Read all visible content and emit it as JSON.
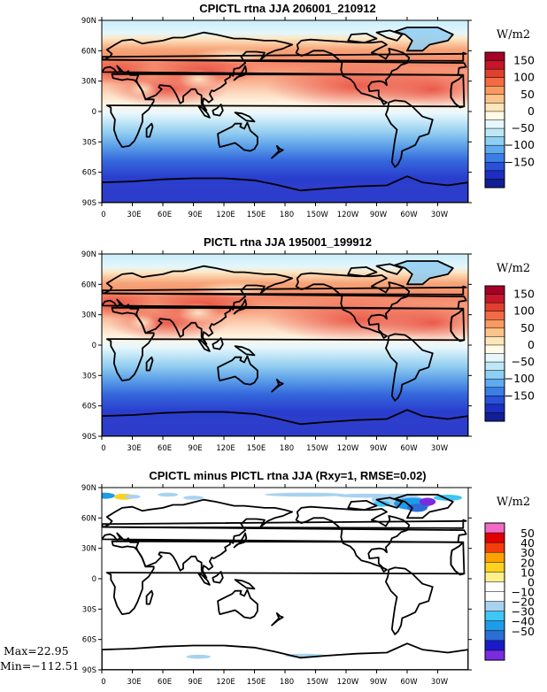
{
  "chart_data": [
    {
      "type": "heatmap",
      "title": "CPICTL rtna JJA 206001_210912",
      "units": "W/m2",
      "lat_labels": [
        "90N",
        "60N",
        "30N",
        "0",
        "30S",
        "60S",
        "90S"
      ],
      "lon_labels": [
        "0",
        "30E",
        "60E",
        "90E",
        "120E",
        "150E",
        "180",
        "150W",
        "120W",
        "90W",
        "60W",
        "30W"
      ],
      "colorbar": {
        "labels": [
          "150",
          "100",
          "50",
          "0",
          "−50",
          "−100",
          "−150"
        ],
        "colors": [
          "#a50026",
          "#c5162a",
          "#e0402f",
          "#f26b43",
          "#f99a60",
          "#fdc48a",
          "#fee6b8",
          "#fffbe6",
          "#e6f7fd",
          "#bfe8f7",
          "#8dd0f3",
          "#5fabef",
          "#3a7ee6",
          "#2952d8",
          "#1c2fc0",
          "#101f95"
        ]
      }
    },
    {
      "type": "heatmap",
      "title": "PICTL rtna JJA 195001_199912",
      "units": "W/m2",
      "lat_labels": [
        "90N",
        "60N",
        "30N",
        "0",
        "30S",
        "60S",
        "90S"
      ],
      "lon_labels": [
        "0",
        "30E",
        "60E",
        "90E",
        "120E",
        "150E",
        "180",
        "150W",
        "120W",
        "90W",
        "60W",
        "30W"
      ],
      "colorbar": {
        "labels": [
          "150",
          "100",
          "50",
          "0",
          "−50",
          "−100",
          "−150"
        ],
        "colors": [
          "#a50026",
          "#c5162a",
          "#e0402f",
          "#f26b43",
          "#f99a60",
          "#fdc48a",
          "#fee6b8",
          "#fffbe6",
          "#e6f7fd",
          "#bfe8f7",
          "#8dd0f3",
          "#5fabef",
          "#3a7ee6",
          "#2952d8",
          "#1c2fc0",
          "#101f95"
        ]
      }
    },
    {
      "type": "heatmap",
      "title": "CPICTL minus PICTL rtna JJA (Rxy=1, RMSE=0.02)",
      "units": "W/m2",
      "lat_labels": [
        "90N",
        "60N",
        "30N",
        "0",
        "30S",
        "60S",
        "90S"
      ],
      "lon_labels": [
        "0",
        "30E",
        "60E",
        "90E",
        "120E",
        "150E",
        "180",
        "150W",
        "120W",
        "90W",
        "60W",
        "30W"
      ],
      "max_label": "Max=22.95",
      "min_label": "Min=−112.51",
      "colorbar": {
        "labels": [
          "50",
          "40",
          "30",
          "20",
          "10",
          "0",
          "−10",
          "−20",
          "−30",
          "−40",
          "−50"
        ],
        "colors": [
          "#f06bc6",
          "#e00000",
          "#f53d0a",
          "#ffa200",
          "#ffd21f",
          "#fff08a",
          "#ffffff",
          "#ffffff",
          "#a8d2f0",
          "#3fc6f5",
          "#1f9be8",
          "#2b6ed6",
          "#1a1ac9",
          "#7a2be0"
        ]
      }
    }
  ]
}
